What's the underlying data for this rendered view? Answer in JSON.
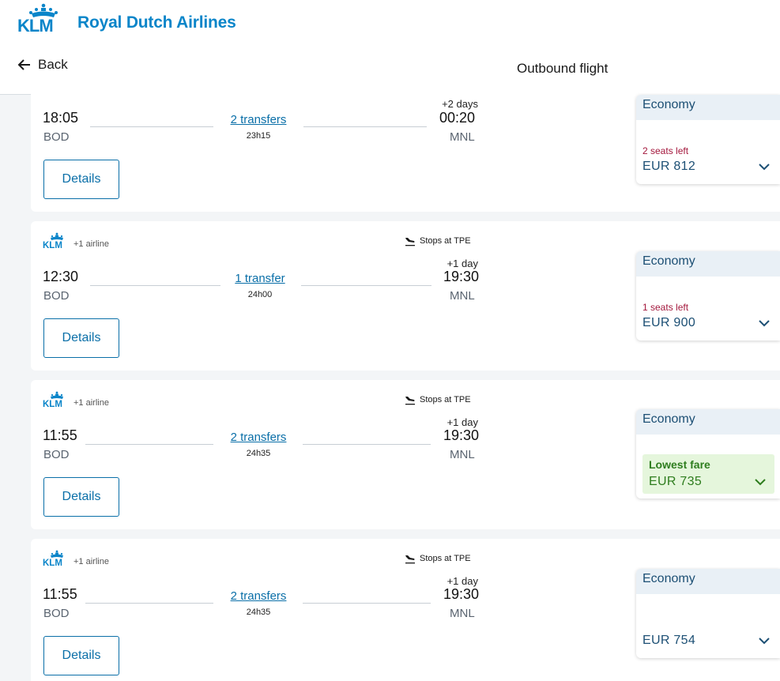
{
  "header": {
    "brand": "Royal Dutch Airlines",
    "back_label": "Back",
    "title": "Outbound flight"
  },
  "colors": {
    "brand_blue": "#0a85c9",
    "link_blue": "#0a6fa8",
    "fare_text": "#1c4f74",
    "seats_warning": "#a3173c",
    "lowest_fare_green": "#2e7d1e",
    "lowest_fare_bg": "#e5f6dc"
  },
  "flights": [
    {
      "dep_time": "18:05",
      "dep_code": "BOD",
      "arr_time": "00:20",
      "arr_code": "MNL",
      "day_offset": "+2 days",
      "transfers": "2 transfers",
      "duration": "23h15",
      "details_label": "Details",
      "fare_class": "Economy",
      "seats_left": "2 seats left",
      "price": "EUR 812"
    },
    {
      "airline_extra": "+1 airline",
      "stops": "Stops at TPE",
      "dep_time": "12:30",
      "dep_code": "BOD",
      "arr_time": "19:30",
      "arr_code": "MNL",
      "day_offset": "+1 day",
      "transfers": "1 transfer",
      "duration": "24h00",
      "details_label": "Details",
      "fare_class": "Economy",
      "seats_left": "1 seats left",
      "price": "EUR 900"
    },
    {
      "airline_extra": "+1 airline",
      "stops": "Stops at TPE",
      "dep_time": "11:55",
      "dep_code": "BOD",
      "arr_time": "19:30",
      "arr_code": "MNL",
      "day_offset": "+1 day",
      "transfers": "2 transfers",
      "duration": "24h35",
      "details_label": "Details",
      "fare_class": "Economy",
      "lowest_label": "Lowest fare",
      "price": "EUR 735"
    },
    {
      "airline_extra": "+1 airline",
      "stops": "Stops at TPE",
      "dep_time": "11:55",
      "dep_code": "BOD",
      "arr_time": "19:30",
      "arr_code": "MNL",
      "day_offset": "+1 day",
      "transfers": "2 transfers",
      "duration": "24h35",
      "details_label": "Details",
      "fare_class": "Economy",
      "price": "EUR 754"
    }
  ]
}
